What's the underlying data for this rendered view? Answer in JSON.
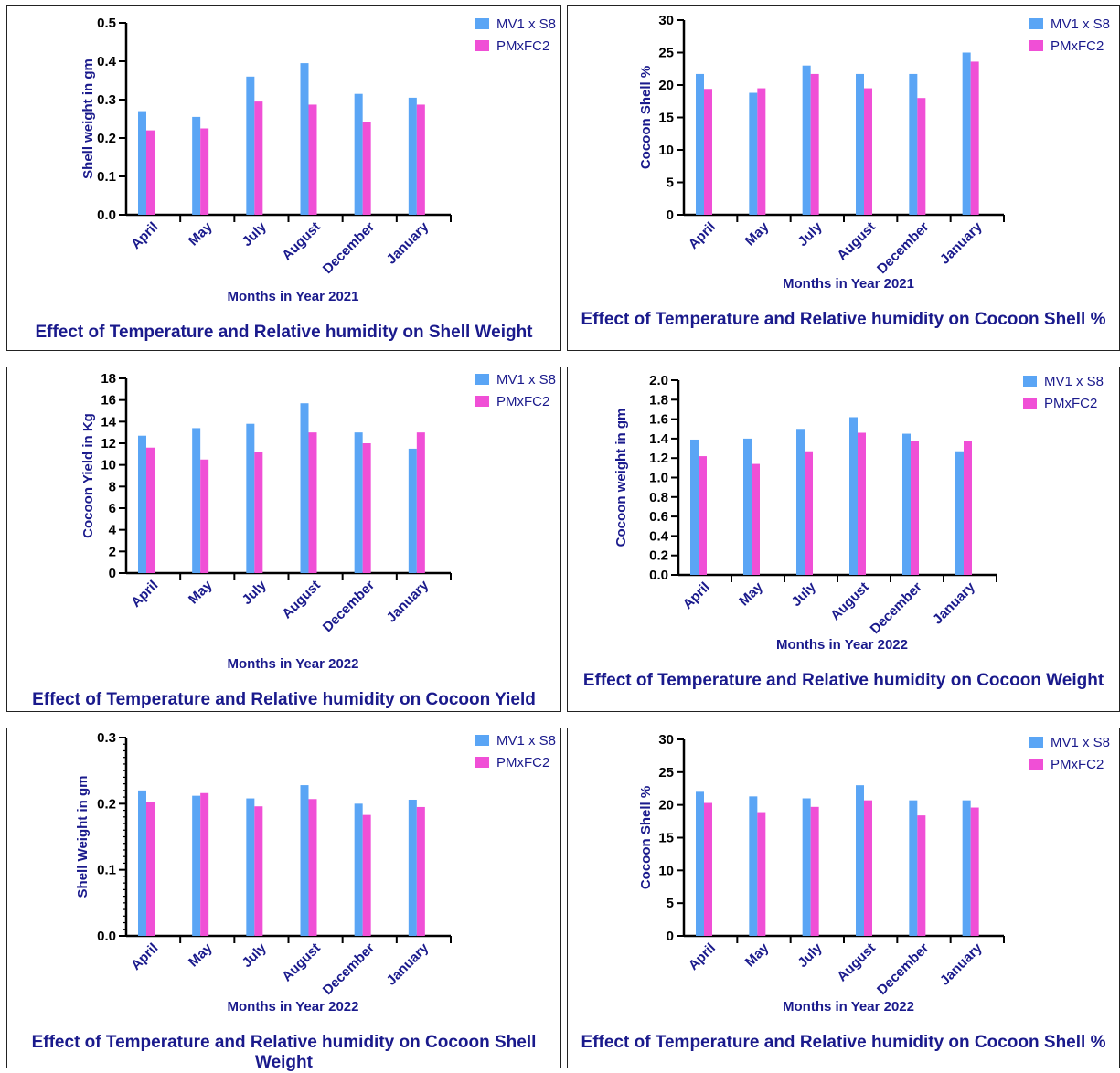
{
  "colors": {
    "mv1": "#5aa5f5",
    "pm": "#f04fd6",
    "axis_text": "#1a1a8c",
    "axis_line": "#000000"
  },
  "chart_data": [
    {
      "type": "bar",
      "categories": [
        "April",
        "May",
        "July",
        "August",
        "December",
        "January"
      ],
      "series": [
        {
          "name": "MV1 x S8",
          "values": [
            0.27,
            0.255,
            0.36,
            0.395,
            0.315,
            0.305
          ]
        },
        {
          "name": "PMxFC2",
          "values": [
            0.22,
            0.225,
            0.295,
            0.287,
            0.242,
            0.287
          ]
        }
      ],
      "xlabel": "Months in Year 2021",
      "ylabel": "Shell weight in gm",
      "ylim": [
        0,
        0.5
      ],
      "yticks": [
        "0.0",
        "0.1",
        "0.2",
        "0.3",
        "0.4",
        "0.5"
      ],
      "title": "Effect of Temperature and Relative humidity on Shell Weight",
      "legend": "top-right"
    },
    {
      "type": "bar",
      "categories": [
        "April",
        "May",
        "July",
        "August",
        "December",
        "January"
      ],
      "series": [
        {
          "name": "MV1 x S8",
          "values": [
            21.7,
            18.8,
            23.0,
            21.7,
            21.7,
            25.0
          ]
        },
        {
          "name": "PMxFC2",
          "values": [
            19.4,
            19.5,
            21.7,
            19.5,
            18.0,
            23.6
          ]
        }
      ],
      "xlabel": "Months in Year 2021",
      "ylabel": "Cocoon  Shell %",
      "ylim": [
        0,
        30
      ],
      "yticks": [
        "0",
        "5",
        "10",
        "15",
        "20",
        "25",
        "30"
      ],
      "title": "Effect of Temperature and Relative humidity on Cocoon Shell %",
      "legend": "top-right"
    },
    {
      "type": "bar",
      "categories": [
        "April",
        "May",
        "July",
        "August",
        "December",
        "January"
      ],
      "series": [
        {
          "name": "MV1 x S8",
          "values": [
            12.7,
            13.4,
            13.8,
            15.7,
            13.0,
            11.5
          ]
        },
        {
          "name": "PMxFC2",
          "values": [
            11.6,
            10.5,
            11.2,
            13.0,
            12.0,
            13.0
          ]
        }
      ],
      "xlabel": "Months in Year 2022",
      "ylabel": "Cocoon Yield in Kg",
      "ylim": [
        0,
        18
      ],
      "yticks": [
        "0",
        "2",
        "4",
        "6",
        "8",
        "10",
        "12",
        "14",
        "16",
        "18"
      ],
      "title": "Effect of Temperature and Relative humidity on Cocoon Yield",
      "legend": "top-right"
    },
    {
      "type": "bar",
      "categories": [
        "April",
        "May",
        "July",
        "August",
        "December",
        "January"
      ],
      "series": [
        {
          "name": "MV1 x S8",
          "values": [
            1.39,
            1.4,
            1.5,
            1.62,
            1.45,
            1.27
          ]
        },
        {
          "name": "PMxFC2",
          "values": [
            1.22,
            1.14,
            1.27,
            1.46,
            1.38,
            1.38
          ]
        }
      ],
      "xlabel": "Months in Year 2022",
      "ylabel": "Cocoon weight in gm",
      "ylim": [
        0,
        2.0
      ],
      "yticks": [
        "0.0",
        "0.2",
        "0.4",
        "0.6",
        "0.8",
        "1.0",
        "1.2",
        "1.4",
        "1.6",
        "1.8",
        "2.0"
      ],
      "title": "Effect of Temperature and Relative humidity on Cocoon Weight",
      "legend": "top-right"
    },
    {
      "type": "bar",
      "categories": [
        "April",
        "May",
        "July",
        "August",
        "December",
        "January"
      ],
      "series": [
        {
          "name": "MV1 x S8",
          "values": [
            0.22,
            0.212,
            0.208,
            0.228,
            0.2,
            0.206
          ]
        },
        {
          "name": "PMxFC2",
          "values": [
            0.202,
            0.216,
            0.196,
            0.207,
            0.183,
            0.195
          ]
        }
      ],
      "xlabel": "Months in Year 2022",
      "ylabel": "Shell Weight in gm",
      "ylim": [
        0,
        0.3
      ],
      "yticks": [
        "0.0",
        "0.1",
        "0.2",
        "0.3"
      ],
      "title": "Effect of Temperature and Relative humidity on Cocoon Shell Weight",
      "legend": "top-right"
    },
    {
      "type": "bar",
      "categories": [
        "April",
        "May",
        "July",
        "August",
        "December",
        "January"
      ],
      "series": [
        {
          "name": "MV1 x S8",
          "values": [
            22.0,
            21.3,
            21.0,
            23.0,
            20.7,
            20.7
          ]
        },
        {
          "name": "PMxFC2",
          "values": [
            20.3,
            18.9,
            19.7,
            20.7,
            18.4,
            19.6
          ]
        }
      ],
      "xlabel": "Months in Year 2022",
      "ylabel": "Cocoon Shell %",
      "ylim": [
        0,
        30
      ],
      "yticks": [
        "0",
        "5",
        "10",
        "15",
        "20",
        "25",
        "30"
      ],
      "title": "Effect of Temperature and Relative humidity on Cocoon Shell %",
      "legend": "top-right"
    }
  ]
}
